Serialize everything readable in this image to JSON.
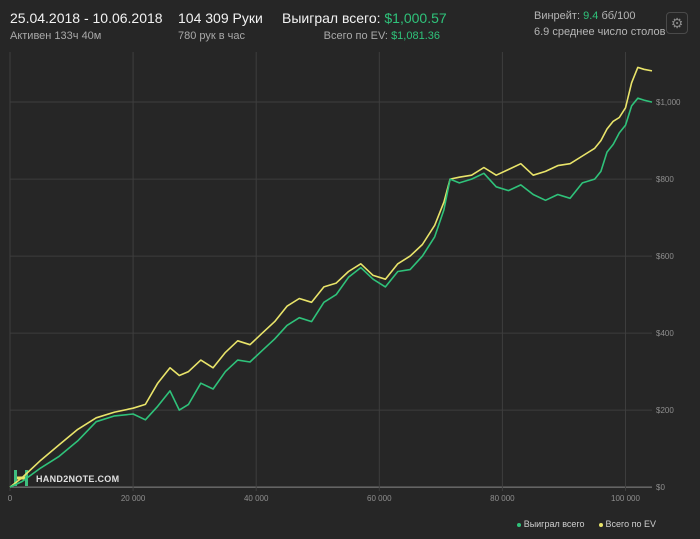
{
  "header": {
    "date_range": "25.04.2018 - 10.06.2018",
    "active_time": "Активен 133ч 40м",
    "hands": "104 309 Руки",
    "hands_per_hour": "780 рук в час",
    "won_label": "Выиграл всего:",
    "won_value": "$1,000.57",
    "ev_label": "Всего по EV:",
    "ev_value": "$1,081.36",
    "winrate_label": "Винрейт:",
    "winrate_value": "9.4",
    "winrate_unit": "бб/100",
    "avg_tables": "6.9 среднее число столов"
  },
  "watermark": "HAND2NOTE.COM",
  "icons": {
    "settings": "gear-icon",
    "logo": "hand2note-logo-icon"
  },
  "colors": {
    "won": "#2fc27a",
    "ev": "#e9e46a",
    "background": "#262626",
    "grid": "#3e3e3e"
  },
  "chart_data": {
    "type": "line",
    "xlim": [
      0,
      104309
    ],
    "ylim": [
      -10,
      1130
    ],
    "x_ticks": [
      "0",
      "20 000",
      "40 000",
      "60 000",
      "80 000",
      "100 000"
    ],
    "y_ticks": [
      "$0",
      "$200",
      "$400",
      "$600",
      "$800",
      "$1,000"
    ],
    "grid": true,
    "legend_position": "bottom-right",
    "series": [
      {
        "name": "Выиграл всего",
        "points": [
          [
            0,
            0
          ],
          [
            2000,
            15
          ],
          [
            5000,
            50
          ],
          [
            8000,
            80
          ],
          [
            11000,
            120
          ],
          [
            14000,
            170
          ],
          [
            17000,
            185
          ],
          [
            20000,
            190
          ],
          [
            22000,
            175
          ],
          [
            24000,
            210
          ],
          [
            26000,
            250
          ],
          [
            27500,
            200
          ],
          [
            29000,
            215
          ],
          [
            31000,
            270
          ],
          [
            33000,
            255
          ],
          [
            35000,
            300
          ],
          [
            37000,
            330
          ],
          [
            39000,
            325
          ],
          [
            41000,
            355
          ],
          [
            43000,
            385
          ],
          [
            45000,
            420
          ],
          [
            47000,
            440
          ],
          [
            49000,
            430
          ],
          [
            51000,
            480
          ],
          [
            53000,
            500
          ],
          [
            55000,
            545
          ],
          [
            57000,
            570
          ],
          [
            59000,
            540
          ],
          [
            61000,
            520
          ],
          [
            63000,
            560
          ],
          [
            65000,
            565
          ],
          [
            67000,
            600
          ],
          [
            69000,
            650
          ],
          [
            70500,
            720
          ],
          [
            71500,
            800
          ],
          [
            73000,
            790
          ],
          [
            75000,
            800
          ],
          [
            77000,
            815
          ],
          [
            79000,
            780
          ],
          [
            81000,
            770
          ],
          [
            83000,
            785
          ],
          [
            85000,
            760
          ],
          [
            87000,
            745
          ],
          [
            89000,
            760
          ],
          [
            91000,
            750
          ],
          [
            93000,
            790
          ],
          [
            95000,
            800
          ],
          [
            96000,
            820
          ],
          [
            97000,
            870
          ],
          [
            98000,
            890
          ],
          [
            99000,
            920
          ],
          [
            100000,
            940
          ],
          [
            101000,
            990
          ],
          [
            102000,
            1010
          ],
          [
            103000,
            1005
          ],
          [
            104309,
            1000
          ]
        ]
      },
      {
        "name": "Всего по EV",
        "points": [
          [
            0,
            0
          ],
          [
            2000,
            25
          ],
          [
            5000,
            70
          ],
          [
            8000,
            110
          ],
          [
            11000,
            150
          ],
          [
            14000,
            180
          ],
          [
            17000,
            195
          ],
          [
            20000,
            205
          ],
          [
            22000,
            215
          ],
          [
            24000,
            270
          ],
          [
            26000,
            310
          ],
          [
            27500,
            290
          ],
          [
            29000,
            300
          ],
          [
            31000,
            330
          ],
          [
            33000,
            310
          ],
          [
            35000,
            350
          ],
          [
            37000,
            380
          ],
          [
            39000,
            370
          ],
          [
            41000,
            400
          ],
          [
            43000,
            430
          ],
          [
            45000,
            470
          ],
          [
            47000,
            490
          ],
          [
            49000,
            480
          ],
          [
            51000,
            520
          ],
          [
            53000,
            530
          ],
          [
            55000,
            560
          ],
          [
            57000,
            580
          ],
          [
            59000,
            550
          ],
          [
            61000,
            540
          ],
          [
            63000,
            580
          ],
          [
            65000,
            600
          ],
          [
            67000,
            630
          ],
          [
            69000,
            680
          ],
          [
            70500,
            740
          ],
          [
            71500,
            800
          ],
          [
            73000,
            805
          ],
          [
            75000,
            810
          ],
          [
            77000,
            830
          ],
          [
            79000,
            810
          ],
          [
            81000,
            825
          ],
          [
            83000,
            840
          ],
          [
            85000,
            810
          ],
          [
            87000,
            820
          ],
          [
            89000,
            835
          ],
          [
            91000,
            840
          ],
          [
            93000,
            860
          ],
          [
            95000,
            880
          ],
          [
            96000,
            900
          ],
          [
            97000,
            930
          ],
          [
            98000,
            950
          ],
          [
            99000,
            960
          ],
          [
            100000,
            985
          ],
          [
            101000,
            1050
          ],
          [
            102000,
            1090
          ],
          [
            103000,
            1085
          ],
          [
            104309,
            1081
          ]
        ]
      }
    ]
  }
}
